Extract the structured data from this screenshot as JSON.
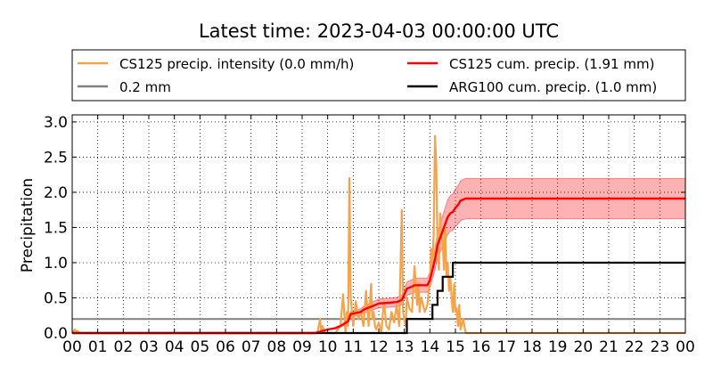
{
  "chart_data": {
    "type": "line",
    "title": "Latest time: 2023-04-03 00:00:00 UTC",
    "xlabel": "",
    "ylabel": "Precipitation",
    "xlim": [
      0,
      24
    ],
    "ylim": [
      0,
      3.1
    ],
    "grid": true,
    "legend_position": "top",
    "x_ticks": [
      "00",
      "01",
      "02",
      "03",
      "04",
      "05",
      "06",
      "07",
      "08",
      "09",
      "10",
      "11",
      "12",
      "13",
      "14",
      "15",
      "16",
      "17",
      "18",
      "19",
      "20",
      "21",
      "22",
      "23",
      "00"
    ],
    "y_ticks": [
      "0.0",
      "0.5",
      "1.0",
      "1.5",
      "2.0",
      "2.5",
      "3.0"
    ],
    "legend": [
      {
        "label": "CS125 precip. intensity (0.0 mm/h)",
        "color": "#f5a34a"
      },
      {
        "label": "CS125 cum. precip. (1.91 mm)",
        "color": "#ff0000"
      },
      {
        "label": "0.2 mm",
        "color": "#808080"
      },
      {
        "label": "ARG100 cum. precip. (1.0 mm)",
        "color": "#000000"
      }
    ],
    "series": [
      {
        "name": "CS125 precip. intensity (0.0 mm/h)",
        "color": "#f5a34a",
        "x": [
          0,
          0.1,
          0.15,
          0.2,
          0.3,
          1,
          9,
          9.6,
          9.7,
          9.75,
          9.8,
          9.9,
          10,
          10.3,
          10.5,
          10.6,
          10.7,
          10.75,
          10.8,
          10.85,
          10.9,
          11,
          11.1,
          11.2,
          11.3,
          11.4,
          11.5,
          11.6,
          11.7,
          11.75,
          11.8,
          11.85,
          11.9,
          12.0,
          12.1,
          12.2,
          12.3,
          12.4,
          12.5,
          12.6,
          12.7,
          12.8,
          12.9,
          12.95,
          13.0,
          13.05,
          13.1,
          13.2,
          13.3,
          13.4,
          13.5,
          13.55,
          13.6,
          13.65,
          13.7,
          13.8,
          13.9,
          14.0,
          14.05,
          14.1,
          14.15,
          14.2,
          14.25,
          14.3,
          14.35,
          14.4,
          14.45,
          14.5,
          14.55,
          14.6,
          14.65,
          14.7,
          14.75,
          14.8,
          14.85,
          14.9,
          14.95,
          15.0,
          15.05,
          15.1,
          15.15,
          15.2,
          15.3,
          15.4,
          16,
          24
        ],
        "values": [
          0,
          0.05,
          0,
          0.03,
          0,
          0,
          0,
          0,
          0.2,
          0,
          0.1,
          0,
          0,
          0,
          0.1,
          0.55,
          0,
          0.3,
          0.1,
          2.2,
          0.5,
          0.1,
          0.45,
          0.2,
          0.3,
          0.1,
          0.6,
          0.1,
          0.7,
          0.2,
          0.3,
          0.1,
          0.05,
          0.15,
          0,
          0.45,
          0.1,
          0.05,
          0.3,
          0.15,
          0.4,
          0.1,
          1.75,
          0.3,
          0.2,
          0.1,
          0.5,
          0.35,
          0.3,
          0.95,
          0.4,
          0.7,
          0.3,
          0.5,
          0.45,
          0.3,
          0.4,
          0.75,
          1.2,
          1.0,
          1.4,
          2.8,
          2.4,
          1.2,
          0.9,
          1.7,
          1.4,
          1.3,
          0.9,
          1.5,
          0.8,
          1.0,
          0.6,
          0.8,
          0.5,
          0.3,
          0.7,
          0.3,
          0.35,
          0.1,
          0.4,
          0.05,
          0.2,
          0,
          0,
          0
        ]
      },
      {
        "name": "CS125 cum. precip. (1.91 mm)",
        "color": "#ff0000",
        "x": [
          0,
          9.5,
          9.7,
          10.0,
          10.3,
          10.5,
          10.6,
          10.8,
          10.9,
          11.3,
          11.4,
          11.6,
          11.8,
          12.0,
          12.4,
          12.7,
          12.9,
          13.0,
          13.1,
          13.3,
          13.4,
          13.7,
          13.9,
          14.0,
          14.1,
          14.2,
          14.3,
          14.4,
          14.5,
          14.6,
          14.7,
          14.8,
          14.9,
          15.0,
          15.1,
          15.2,
          15.4,
          24
        ],
        "values": [
          0,
          0,
          0.02,
          0.05,
          0.07,
          0.1,
          0.12,
          0.17,
          0.27,
          0.3,
          0.33,
          0.36,
          0.39,
          0.42,
          0.43,
          0.44,
          0.47,
          0.55,
          0.63,
          0.66,
          0.68,
          0.68,
          0.68,
          0.75,
          0.9,
          1.05,
          1.25,
          1.35,
          1.45,
          1.55,
          1.65,
          1.7,
          1.72,
          1.78,
          1.82,
          1.88,
          1.91,
          1.91
        ],
        "band_upper_factor": 1.15,
        "band_lower_factor": 0.85
      },
      {
        "name": "0.2 mm",
        "color": "#808080",
        "x": [
          0,
          24
        ],
        "values": [
          0.2,
          0.2
        ]
      },
      {
        "name": "ARG100 cum. precip. (1.0 mm)",
        "color": "#000000",
        "step": true,
        "x": [
          0,
          13.1,
          13.1,
          14.1,
          14.1,
          14.3,
          14.3,
          14.5,
          14.5,
          14.9,
          14.9,
          24
        ],
        "values": [
          0,
          0,
          0.2,
          0.2,
          0.4,
          0.4,
          0.6,
          0.6,
          0.8,
          0.8,
          1.0,
          1.0
        ]
      }
    ]
  }
}
